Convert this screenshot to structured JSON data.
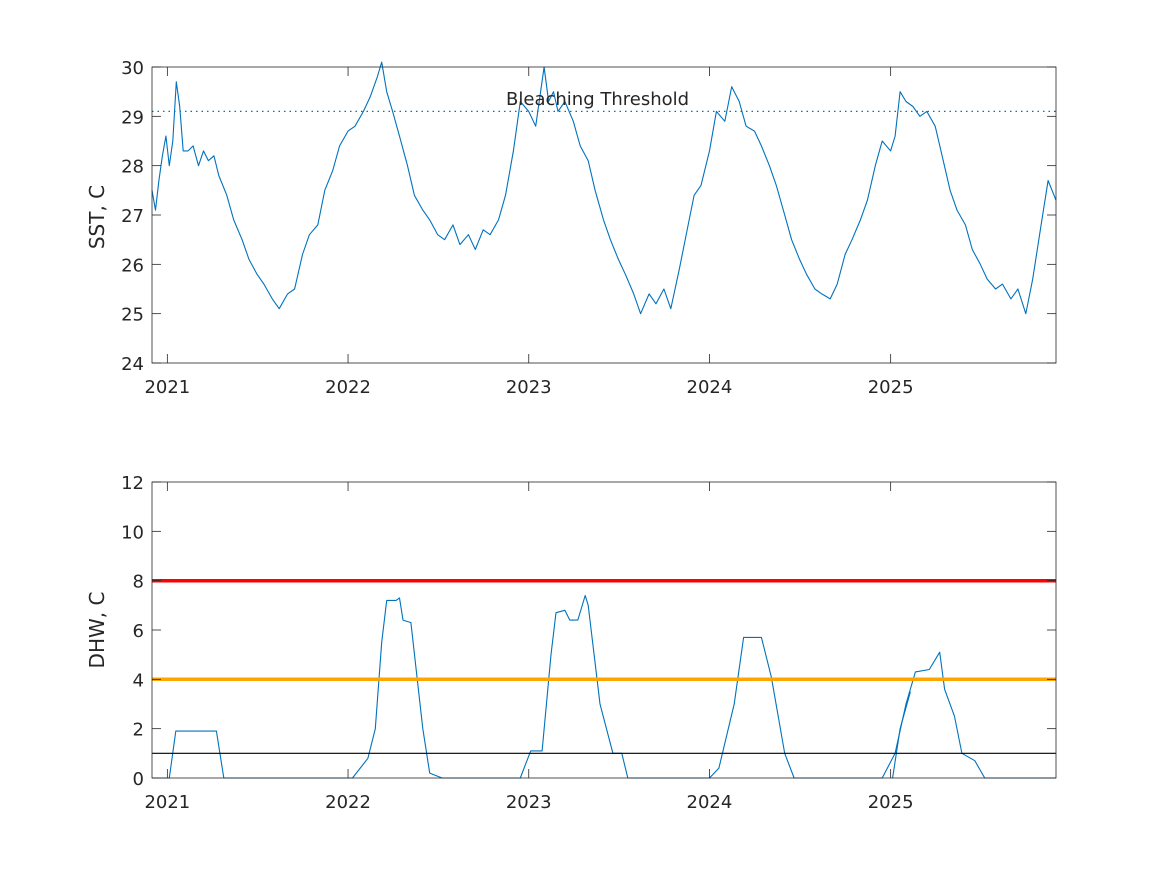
{
  "chart_data": [
    {
      "type": "line",
      "title": "",
      "xlabel": "",
      "ylabel": "SST, C",
      "ylim": [
        24,
        30
      ],
      "xlim": [
        "2020-12-01",
        "2025-12-01"
      ],
      "x_ticks": [
        "2021",
        "2022",
        "2023",
        "2024",
        "2025"
      ],
      "y_ticks": [
        "24",
        "25",
        "26",
        "27",
        "28",
        "29",
        "30"
      ],
      "grid": false,
      "series": [
        {
          "color": "#0072BD",
          "values": [
            [
              "2020-12-01",
              27.5
            ],
            [
              "2020-12-08",
              27.1
            ],
            [
              "2020-12-15",
              27.7
            ],
            [
              "2020-12-22",
              28.2
            ],
            [
              "2020-12-29",
              28.6
            ],
            [
              "2021-01-05",
              28.0
            ],
            [
              "2021-01-12",
              28.5
            ],
            [
              "2021-01-19",
              29.7
            ],
            [
              "2021-01-26",
              29.2
            ],
            [
              "2021-02-02",
              28.3
            ],
            [
              "2021-02-12",
              28.3
            ],
            [
              "2021-02-22",
              28.4
            ],
            [
              "2021-03-05",
              28.0
            ],
            [
              "2021-03-15",
              28.3
            ],
            [
              "2021-03-25",
              28.1
            ],
            [
              "2021-04-05",
              28.2
            ],
            [
              "2021-04-15",
              27.8
            ],
            [
              "2021-05-01",
              27.4
            ],
            [
              "2021-05-15",
              26.9
            ],
            [
              "2021-06-01",
              26.5
            ],
            [
              "2021-06-15",
              26.1
            ],
            [
              "2021-07-01",
              25.8
            ],
            [
              "2021-07-15",
              25.6
            ],
            [
              "2021-08-01",
              25.3
            ],
            [
              "2021-08-15",
              25.1
            ],
            [
              "2021-09-01",
              25.4
            ],
            [
              "2021-09-15",
              25.5
            ],
            [
              "2021-10-01",
              26.2
            ],
            [
              "2021-10-15",
              26.6
            ],
            [
              "2021-11-01",
              26.8
            ],
            [
              "2021-11-15",
              27.5
            ],
            [
              "2021-12-01",
              27.9
            ],
            [
              "2021-12-15",
              28.4
            ],
            [
              "2022-01-01",
              28.7
            ],
            [
              "2022-01-15",
              28.8
            ],
            [
              "2022-02-01",
              29.1
            ],
            [
              "2022-02-15",
              29.4
            ],
            [
              "2022-03-01",
              29.8
            ],
            [
              "2022-03-10",
              30.1
            ],
            [
              "2022-03-20",
              29.5
            ],
            [
              "2022-04-01",
              29.1
            ],
            [
              "2022-04-15",
              28.6
            ],
            [
              "2022-05-01",
              28.0
            ],
            [
              "2022-05-15",
              27.4
            ],
            [
              "2022-06-01",
              27.1
            ],
            [
              "2022-06-15",
              26.9
            ],
            [
              "2022-07-01",
              26.6
            ],
            [
              "2022-07-15",
              26.5
            ],
            [
              "2022-08-01",
              26.8
            ],
            [
              "2022-08-15",
              26.4
            ],
            [
              "2022-09-01",
              26.6
            ],
            [
              "2022-09-15",
              26.3
            ],
            [
              "2022-10-01",
              26.7
            ],
            [
              "2022-10-15",
              26.6
            ],
            [
              "2022-11-01",
              26.9
            ],
            [
              "2022-11-15",
              27.4
            ],
            [
              "2022-12-01",
              28.3
            ],
            [
              "2022-12-15",
              29.3
            ],
            [
              "2023-01-01",
              29.1
            ],
            [
              "2023-01-15",
              28.8
            ],
            [
              "2023-02-01",
              30.0
            ],
            [
              "2023-02-10",
              29.3
            ],
            [
              "2023-02-20",
              29.5
            ],
            [
              "2023-03-01",
              29.1
            ],
            [
              "2023-03-15",
              29.3
            ],
            [
              "2023-04-01",
              28.9
            ],
            [
              "2023-04-15",
              28.4
            ],
            [
              "2023-05-01",
              28.1
            ],
            [
              "2023-05-15",
              27.5
            ],
            [
              "2023-06-01",
              26.9
            ],
            [
              "2023-06-15",
              26.5
            ],
            [
              "2023-07-01",
              26.1
            ],
            [
              "2023-07-15",
              25.8
            ],
            [
              "2023-08-01",
              25.4
            ],
            [
              "2023-08-15",
              25.0
            ],
            [
              "2023-09-01",
              25.4
            ],
            [
              "2023-09-15",
              25.2
            ],
            [
              "2023-10-01",
              25.5
            ],
            [
              "2023-10-15",
              25.1
            ],
            [
              "2023-11-01",
              25.9
            ],
            [
              "2023-11-15",
              26.6
            ],
            [
              "2023-12-01",
              27.4
            ],
            [
              "2023-12-15",
              27.6
            ],
            [
              "2024-01-01",
              28.3
            ],
            [
              "2024-01-15",
              29.1
            ],
            [
              "2024-02-01",
              28.9
            ],
            [
              "2024-02-15",
              29.6
            ],
            [
              "2024-03-01",
              29.3
            ],
            [
              "2024-03-15",
              28.8
            ],
            [
              "2024-04-01",
              28.7
            ],
            [
              "2024-04-15",
              28.4
            ],
            [
              "2024-05-01",
              28.0
            ],
            [
              "2024-05-15",
              27.6
            ],
            [
              "2024-06-01",
              27.0
            ],
            [
              "2024-06-15",
              26.5
            ],
            [
              "2024-07-01",
              26.1
            ],
            [
              "2024-07-15",
              25.8
            ],
            [
              "2024-08-01",
              25.5
            ],
            [
              "2024-08-15",
              25.4
            ],
            [
              "2024-09-01",
              25.3
            ],
            [
              "2024-09-15",
              25.6
            ],
            [
              "2024-10-01",
              26.2
            ],
            [
              "2024-10-15",
              26.5
            ],
            [
              "2024-11-01",
              26.9
            ],
            [
              "2024-11-15",
              27.3
            ],
            [
              "2024-12-01",
              28.0
            ],
            [
              "2024-12-15",
              28.5
            ],
            [
              "2025-01-01",
              28.3
            ],
            [
              "2025-01-10",
              28.6
            ],
            [
              "2025-01-20",
              29.5
            ],
            [
              "2025-02-01",
              29.3
            ],
            [
              "2025-02-15",
              29.2
            ],
            [
              "2025-03-01",
              29.0
            ],
            [
              "2025-03-15",
              29.1
            ],
            [
              "2025-04-01",
              28.8
            ],
            [
              "2025-04-15",
              28.2
            ],
            [
              "2025-05-01",
              27.5
            ],
            [
              "2025-05-15",
              27.1
            ],
            [
              "2025-06-01",
              26.8
            ],
            [
              "2025-06-15",
              26.3
            ],
            [
              "2025-07-01",
              26.0
            ],
            [
              "2025-07-15",
              25.7
            ],
            [
              "2025-08-01",
              25.5
            ],
            [
              "2025-08-15",
              25.6
            ],
            [
              "2025-09-01",
              25.3
            ],
            [
              "2025-09-15",
              25.5
            ],
            [
              "2025-10-01",
              25.0
            ],
            [
              "2025-10-15",
              25.7
            ],
            [
              "2025-11-01",
              26.8
            ],
            [
              "2025-11-15",
              27.7
            ],
            [
              "2025-12-01",
              27.3
            ]
          ]
        },
        {
          "color": "#0072BD",
          "style": "dotted",
          "values": [
            [
              "2020-12-01",
              29.1
            ],
            [
              "2025-12-01",
              29.1
            ]
          ]
        }
      ],
      "annotations": [
        {
          "text": "Bleaching Threshold",
          "x": "2023-05-20",
          "y": 29.35
        }
      ]
    },
    {
      "type": "line",
      "title": "",
      "xlabel": "",
      "ylabel": "DHW, C",
      "ylim": [
        0,
        12
      ],
      "xlim": [
        "2020-12-01",
        "2025-12-01"
      ],
      "x_ticks": [
        "2021",
        "2022",
        "2023",
        "2024",
        "2025"
      ],
      "y_ticks": [
        "0",
        "2",
        "4",
        "6",
        "8",
        "10",
        "12"
      ],
      "grid": false,
      "series": [
        {
          "color": "#0072BD",
          "values": [
            [
              "2020-12-01",
              0
            ],
            [
              "2021-01-05",
              0
            ],
            [
              "2021-01-18",
              1.9
            ],
            [
              "2021-04-10",
              1.9
            ],
            [
              "2021-04-25",
              0
            ],
            [
              "2022-01-10",
              0
            ],
            [
              "2022-02-10",
              0.8
            ],
            [
              "2022-02-25",
              2.0
            ],
            [
              "2022-03-10",
              5.5
            ],
            [
              "2022-03-20",
              7.2
            ],
            [
              "2022-04-08",
              7.2
            ],
            [
              "2022-04-15",
              7.3
            ],
            [
              "2022-04-22",
              6.4
            ],
            [
              "2022-05-08",
              6.3
            ],
            [
              "2022-06-01",
              2.0
            ],
            [
              "2022-06-15",
              0.2
            ],
            [
              "2022-07-10",
              0
            ],
            [
              "2022-12-15",
              0
            ],
            [
              "2023-01-05",
              1.1
            ],
            [
              "2023-01-28",
              1.1
            ],
            [
              "2023-02-15",
              5.0
            ],
            [
              "2023-02-25",
              6.7
            ],
            [
              "2023-03-15",
              6.8
            ],
            [
              "2023-03-25",
              6.4
            ],
            [
              "2023-04-10",
              6.4
            ],
            [
              "2023-04-25",
              7.4
            ],
            [
              "2023-05-01",
              7.0
            ],
            [
              "2023-05-25",
              3.0
            ],
            [
              "2023-06-20",
              1.0
            ],
            [
              "2023-07-08",
              1.0
            ],
            [
              "2023-07-20",
              0
            ],
            [
              "2024-01-01",
              0
            ],
            [
              "2024-01-20",
              0.4
            ],
            [
              "2024-02-20",
              3.0
            ],
            [
              "2024-03-10",
              5.7
            ],
            [
              "2024-04-15",
              5.7
            ],
            [
              "2024-05-05",
              4.1
            ],
            [
              "2024-06-01",
              1.0
            ],
            [
              "2024-06-20",
              0
            ],
            [
              "2024-12-15",
              0
            ],
            [
              "2025-01-10",
              1.0
            ],
            [
              "2025-02-01",
              3.0
            ],
            [
              "2025-02-20",
              4.3
            ],
            [
              "2025-03-20",
              4.4
            ],
            [
              "2025-04-10",
              5.1
            ],
            [
              "2025-04-20",
              3.6
            ],
            [
              "2025-05-10",
              2.5
            ],
            [
              "2025-05-25",
              1.0
            ],
            [
              "2025-06-20",
              0.7
            ],
            [
              "2025-07-10",
              0
            ],
            [
              "2025-12-01",
              0
            ]
          ]
        },
        {
          "color": "#0072BD",
          "values": [
            [
              "2025-01-05",
              0
            ],
            [
              "2025-01-20",
              2.0
            ],
            [
              "2025-02-10",
              3.5
            ]
          ]
        },
        {
          "color": "#FF0000",
          "width": "thick",
          "values": [
            [
              "2020-12-01",
              8
            ],
            [
              "2025-12-01",
              8
            ]
          ]
        },
        {
          "color": "#FFA500",
          "width": "thick",
          "values": [
            [
              "2020-12-01",
              4
            ],
            [
              "2025-12-01",
              4
            ]
          ]
        },
        {
          "color": "#000000",
          "values": [
            [
              "2020-12-01",
              1
            ],
            [
              "2025-12-01",
              1
            ]
          ]
        }
      ]
    }
  ]
}
